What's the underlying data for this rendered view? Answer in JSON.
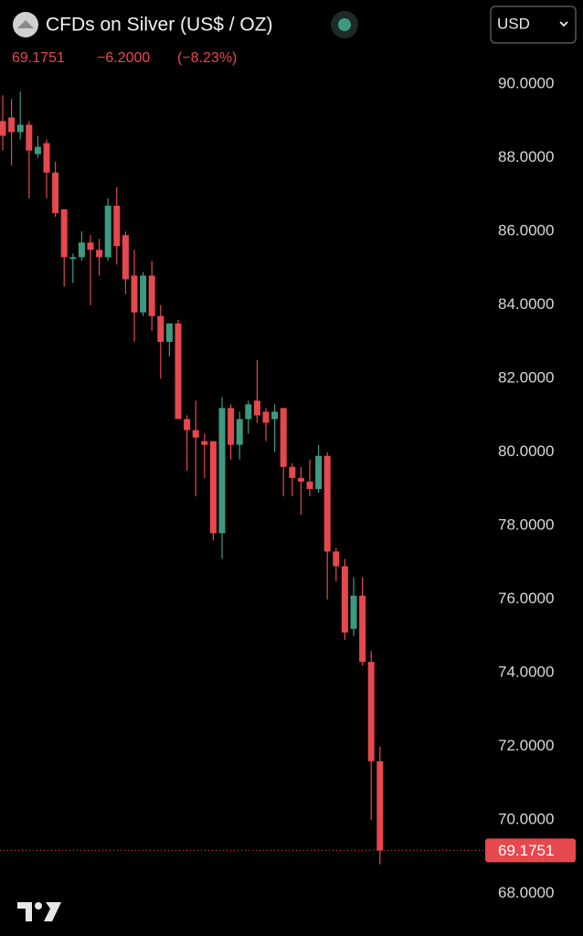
{
  "header": {
    "title": "CFDs on Silver (US$ / OZ)",
    "price": "69.1751",
    "change": "−6.2000",
    "change_pct": "(−8.23%)",
    "currency": "USD"
  },
  "chart_data": {
    "type": "candlestick",
    "series": [
      {
        "up_color": "#3d9a80",
        "down_color": "#e5484d",
        "open": [
          89.0,
          89.1,
          88.7,
          88.9,
          88.1,
          88.4,
          87.6,
          86.6,
          85.25,
          85.3,
          85.7,
          85.5,
          85.3,
          86.7,
          85.9,
          84.8,
          83.8,
          84.8,
          83.7,
          83.0,
          83.5,
          80.9,
          80.6,
          80.3,
          80.3,
          77.8,
          81.2,
          80.2,
          80.9,
          81.4,
          81.1,
          80.9,
          81.2,
          79.6,
          79.3,
          79.2,
          79.0,
          79.9,
          77.3,
          76.9,
          75.2,
          76.1,
          74.3,
          71.6
        ],
        "high": [
          89.7,
          89.6,
          89.8,
          89.0,
          88.6,
          88.5,
          87.9,
          86.6,
          85.4,
          86.0,
          85.9,
          85.8,
          86.9,
          87.2,
          86.0,
          85.5,
          84.9,
          85.2,
          84.0,
          83.5,
          83.6,
          81.0,
          81.4,
          80.5,
          80.3,
          81.5,
          81.3,
          81.1,
          81.4,
          82.5,
          81.2,
          81.3,
          81.2,
          79.7,
          79.6,
          79.8,
          80.2,
          80.0,
          77.4,
          77.1,
          76.6,
          76.6,
          74.6,
          72.0
        ],
        "low": [
          88.2,
          87.8,
          88.5,
          86.9,
          88.0,
          86.9,
          86.4,
          84.5,
          84.6,
          85.2,
          84.0,
          84.8,
          85.2,
          85.1,
          84.3,
          83.0,
          83.7,
          83.3,
          82.0,
          82.6,
          80.9,
          79.5,
          78.8,
          79.3,
          77.6,
          77.1,
          79.8,
          79.8,
          80.5,
          80.8,
          80.3,
          80.0,
          78.8,
          78.8,
          78.3,
          78.8,
          78.9,
          76.0,
          76.5,
          74.9,
          75.0,
          74.2,
          70.0,
          68.8
        ],
        "close": [
          88.6,
          88.7,
          88.9,
          88.2,
          88.3,
          87.6,
          86.5,
          85.3,
          85.3,
          85.7,
          85.5,
          85.3,
          86.7,
          85.6,
          84.7,
          83.8,
          84.8,
          83.7,
          83.0,
          83.5,
          80.9,
          80.6,
          80.4,
          80.2,
          77.8,
          81.2,
          80.2,
          80.9,
          81.3,
          81.0,
          80.8,
          81.1,
          79.6,
          79.3,
          79.2,
          79.0,
          79.9,
          77.3,
          76.9,
          75.1,
          76.1,
          74.3,
          71.6,
          69.1751
        ]
      }
    ],
    "last_price": 69.1751,
    "last_price_color": "#e5484d",
    "ylim": [
      66.9,
      90.8
    ],
    "yticks": [
      {
        "value": 68,
        "label": "68.0000"
      },
      {
        "value": 70,
        "label": "70.0000"
      },
      {
        "value": 72,
        "label": "72.0000"
      },
      {
        "value": 74,
        "label": "74.0000"
      },
      {
        "value": 76,
        "label": "76.0000"
      },
      {
        "value": 78,
        "label": "78.0000"
      },
      {
        "value": 80,
        "label": "80.0000"
      },
      {
        "value": 82,
        "label": "82.0000"
      },
      {
        "value": 84,
        "label": "84.0000"
      },
      {
        "value": 86,
        "label": "86.0000"
      },
      {
        "value": 88,
        "label": "88.0000"
      },
      {
        "value": 90,
        "label": "90.0000"
      }
    ],
    "grid": false
  }
}
